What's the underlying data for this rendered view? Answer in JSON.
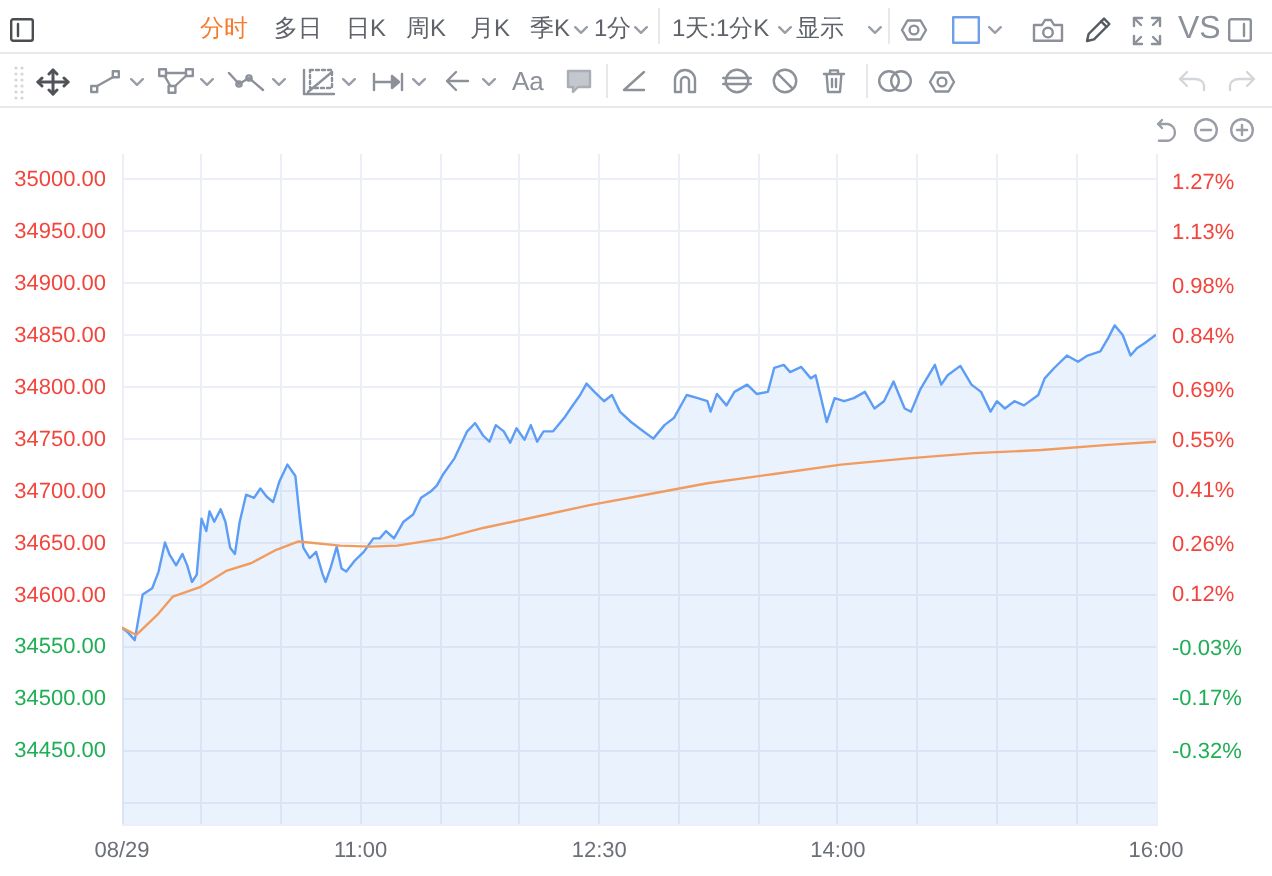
{
  "chart_data": {
    "type": "area",
    "annotations": [
      "分时",
      "多日",
      "日K",
      "周K",
      "月K",
      "季K",
      "1分",
      "1天:1分K",
      "显示",
      "VS",
      "Aa"
    ],
    "xlim": [
      9.5,
      16
    ],
    "xticks": [
      {
        "value": 9.5,
        "label": "08/29"
      },
      {
        "value": 10,
        "label": null
      },
      {
        "value": 10.5,
        "label": null
      },
      {
        "value": 11,
        "label": "11:00"
      },
      {
        "value": 11.5,
        "label": null
      },
      {
        "value": 12,
        "label": null
      },
      {
        "value": 12.5,
        "label": "12:30"
      },
      {
        "value": 13,
        "label": null
      },
      {
        "value": 13.5,
        "label": null
      },
      {
        "value": 14,
        "label": "14:00"
      },
      {
        "value": 14.5,
        "label": null
      },
      {
        "value": 15,
        "label": null
      },
      {
        "value": 15.5,
        "label": null
      },
      {
        "value": 16,
        "label": "16:00"
      }
    ],
    "ylim": [
      34380,
      35025
    ],
    "yticks": [
      {
        "value": 34400,
        "label": null
      },
      {
        "value": 34450,
        "label": "34450.00"
      },
      {
        "value": 34500,
        "label": "34500.00"
      },
      {
        "value": 34550,
        "label": "34550.00"
      },
      {
        "value": 34600,
        "label": "34600.00"
      },
      {
        "value": 34650,
        "label": "34650.00"
      },
      {
        "value": 34700,
        "label": "34700.00"
      },
      {
        "value": 34750,
        "label": "34750.00"
      },
      {
        "value": 34800,
        "label": "34800.00"
      },
      {
        "value": 34850,
        "label": "34850.00"
      },
      {
        "value": 34900,
        "label": "34900.00"
      },
      {
        "value": 34950,
        "label": "34950.00"
      },
      {
        "value": 35000,
        "label": "35000.00"
      }
    ],
    "y2lim": [
      -0.52,
      1.35
    ],
    "y2ticks": [
      {
        "value": -0.32,
        "label": "-0.32%"
      },
      {
        "value": -0.17,
        "label": "-0.17%"
      },
      {
        "value": -0.03,
        "label": "-0.03%"
      },
      {
        "value": 0.12,
        "label": "0.12%"
      },
      {
        "value": 0.26,
        "label": "0.26%"
      },
      {
        "value": 0.41,
        "label": "0.41%"
      },
      {
        "value": 0.55,
        "label": "0.55%"
      },
      {
        "value": 0.69,
        "label": "0.69%"
      },
      {
        "value": 0.84,
        "label": "0.84%"
      },
      {
        "value": 0.98,
        "label": "0.98%"
      },
      {
        "value": 1.13,
        "label": "1.13%"
      },
      {
        "value": 1.27,
        "label": "1.27%"
      }
    ],
    "grid": true,
    "marker": "none",
    "series": [
      {
        "type": "area",
        "color": "#5d9df5",
        "x": [
          9.5,
          9.54,
          9.58,
          9.63,
          9.69,
          9.73,
          9.77,
          9.8,
          9.84,
          9.88,
          9.91,
          9.94,
          9.97,
          10,
          10.03,
          10.05,
          10.08,
          10.12,
          10.15,
          10.18,
          10.21,
          10.24,
          10.28,
          10.33,
          10.37,
          10.41,
          10.45,
          10.49,
          10.54,
          10.59,
          10.62,
          10.64,
          10.68,
          10.72,
          10.76,
          10.78,
          10.81,
          10.85,
          10.88,
          10.91,
          10.96,
          11.02,
          11.08,
          11.12,
          11.16,
          11.21,
          11.27,
          11.33,
          11.38,
          11.44,
          11.48,
          11.52,
          11.59,
          11.63,
          11.67,
          11.72,
          11.77,
          11.81,
          11.85,
          11.9,
          11.94,
          11.98,
          12.03,
          12.07,
          12.11,
          12.15,
          12.21,
          12.28,
          12.32,
          12.38,
          12.42,
          12.47,
          12.53,
          12.58,
          12.63,
          12.7,
          12.76,
          12.84,
          12.91,
          12.97,
          13.05,
          13.12,
          13.18,
          13.2,
          13.24,
          13.3,
          13.35,
          13.43,
          13.49,
          13.56,
          13.6,
          13.66,
          13.7,
          13.77,
          13.83,
          13.86,
          13.89,
          13.93,
          13.98,
          14.04,
          14.1,
          14.17,
          14.23,
          14.29,
          14.35,
          14.42,
          14.46,
          14.52,
          14.61,
          14.65,
          14.69,
          14.77,
          14.84,
          14.9,
          14.96,
          15,
          15.05,
          15.11,
          15.17,
          15.26,
          15.3,
          15.36,
          15.44,
          15.51,
          15.57,
          15.65,
          15.7,
          15.74,
          15.79,
          15.84,
          15.88,
          15.93,
          16
        ],
        "values": [
          34569,
          34564,
          34557,
          34601,
          34607,
          34623,
          34651,
          34639,
          34629,
          34640,
          34629,
          34613,
          34620,
          34674,
          34662,
          34681,
          34671,
          34683,
          34671,
          34646,
          34640,
          34671,
          34697,
          34694,
          34703,
          34695,
          34690,
          34710,
          34726,
          34715,
          34671,
          34646,
          34636,
          34642,
          34621,
          34613,
          34626,
          34647,
          34626,
          34623,
          34633,
          34642,
          34655,
          34655,
          34662,
          34655,
          34671,
          34678,
          34694,
          34700,
          34706,
          34717,
          34732,
          34745,
          34758,
          34766,
          34754,
          34748,
          34764,
          34758,
          34747,
          34761,
          34750,
          34764,
          34748,
          34758,
          34758,
          34771,
          34780,
          34793,
          34804,
          34796,
          34787,
          34793,
          34777,
          34767,
          34760,
          34751,
          34764,
          34771,
          34793,
          34790,
          34787,
          34777,
          34794,
          34783,
          34796,
          34803,
          34794,
          34796,
          34819,
          34822,
          34815,
          34820,
          34809,
          34812,
          34793,
          34767,
          34790,
          34787,
          34790,
          34796,
          34780,
          34787,
          34806,
          34780,
          34777,
          34799,
          34822,
          34803,
          34812,
          34821,
          34803,
          34796,
          34777,
          34787,
          34780,
          34787,
          34783,
          34793,
          34809,
          34819,
          34831,
          34825,
          34831,
          34835,
          34848,
          34860,
          34851,
          34831,
          34838,
          34843,
          34851
        ]
      },
      {
        "type": "line",
        "color": "#f29b5e",
        "x": [
          9.5,
          9.59,
          9.72,
          9.82,
          9.99,
          10.16,
          10.31,
          10.47,
          10.61,
          10.87,
          11.06,
          11.23,
          11.52,
          11.77,
          12.11,
          12.44,
          12.76,
          13.18,
          13.6,
          14.02,
          14.44,
          14.86,
          15.28,
          15.7,
          16
        ],
        "values": [
          34569,
          34562,
          34581,
          34599,
          34608,
          34624,
          34631,
          34644,
          34652,
          34648,
          34647,
          34648,
          34655,
          34665,
          34676,
          34687,
          34696,
          34708,
          34717,
          34726,
          34732,
          34737,
          34740,
          34745,
          34748
        ]
      }
    ]
  }
}
